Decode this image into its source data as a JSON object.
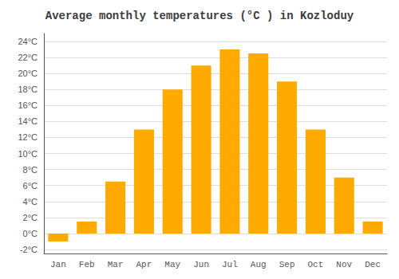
{
  "chart_data": {
    "type": "bar",
    "title": "Average monthly temperatures (°C ) in Kozloduy",
    "categories": [
      "Jan",
      "Feb",
      "Mar",
      "Apr",
      "May",
      "Jun",
      "Jul",
      "Aug",
      "Sep",
      "Oct",
      "Nov",
      "Dec"
    ],
    "values": [
      -1.0,
      1.5,
      6.5,
      13.0,
      18.0,
      21.0,
      23.0,
      22.5,
      19.0,
      13.0,
      7.0,
      1.5
    ],
    "color": "#FFAA00",
    "ylim": [
      -2.5,
      25
    ],
    "yticks": [
      {
        "value": -2,
        "label": "-2°C"
      },
      {
        "value": 0,
        "label": "0°C"
      },
      {
        "value": 2,
        "label": "2°C"
      },
      {
        "value": 4,
        "label": "4°C"
      },
      {
        "value": 6,
        "label": "6°C"
      },
      {
        "value": 8,
        "label": "8°C"
      },
      {
        "value": 10,
        "label": "10°C"
      },
      {
        "value": 12,
        "label": "12°C"
      },
      {
        "value": 14,
        "label": "14°C"
      },
      {
        "value": 16,
        "label": "16°C"
      },
      {
        "value": 18,
        "label": "18°C"
      },
      {
        "value": 20,
        "label": "20°C"
      },
      {
        "value": 22,
        "label": "22°C"
      },
      {
        "value": 24,
        "label": "24°C"
      }
    ],
    "grid": true
  }
}
